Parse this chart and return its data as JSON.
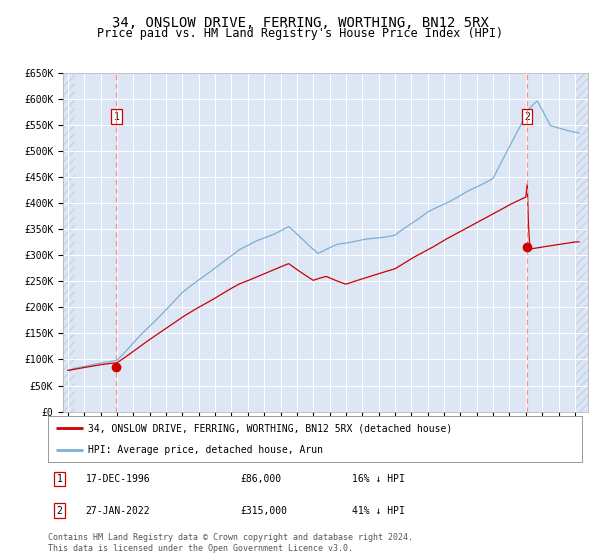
{
  "title": "34, ONSLOW DRIVE, FERRING, WORTHING, BN12 5RX",
  "subtitle": "Price paid vs. HM Land Registry's House Price Index (HPI)",
  "title_fontsize": 10,
  "subtitle_fontsize": 8.5,
  "plot_bg_color": "#dce6f5",
  "outer_bg_color": "#ffffff",
  "hpi_color": "#7bafd4",
  "price_color": "#cc0000",
  "ylim": [
    0,
    650000
  ],
  "yticks": [
    0,
    50000,
    100000,
    150000,
    200000,
    250000,
    300000,
    350000,
    400000,
    450000,
    500000,
    550000,
    600000,
    650000
  ],
  "sale1_date_num": 1996.96,
  "sale1_price": 86000,
  "sale2_date_num": 2022.07,
  "sale2_price": 315000,
  "legend_line1": "34, ONSLOW DRIVE, FERRING, WORTHING, BN12 5RX (detached house)",
  "legend_line2": "HPI: Average price, detached house, Arun",
  "footer": "Contains HM Land Registry data © Crown copyright and database right 2024.\nThis data is licensed under the Open Government Licence v3.0.",
  "xmin": 1993.7,
  "xmax": 2025.8
}
